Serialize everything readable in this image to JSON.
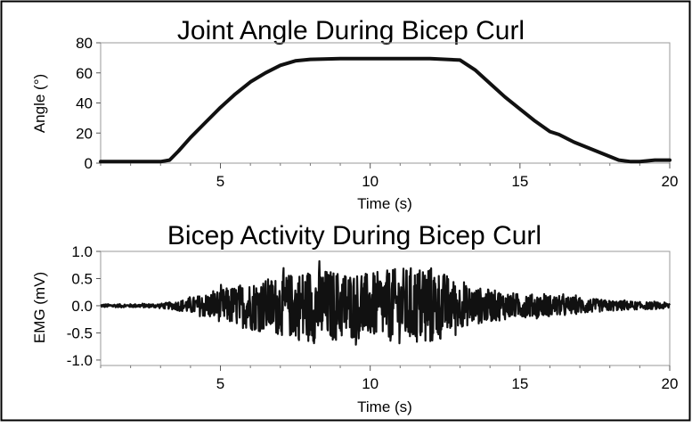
{
  "chart_data": [
    {
      "type": "line",
      "title": "Joint Angle During Bicep Curl",
      "xlabel": "Time (s)",
      "ylabel": "Angle (°)",
      "xlim": [
        1,
        20
      ],
      "ylim": [
        0,
        80
      ],
      "xticks": [
        5,
        10,
        15,
        20
      ],
      "yticks": [
        0,
        20,
        40,
        60,
        80
      ],
      "series": [
        {
          "color": "#111111",
          "x": [
            1,
            2,
            3,
            3.3,
            3.6,
            4,
            4.5,
            5,
            5.5,
            6,
            6.5,
            7,
            7.5,
            8,
            9,
            10,
            11,
            12,
            13,
            13.5,
            14,
            14.5,
            15,
            15.5,
            16,
            16.3,
            16.8,
            17.3,
            17.8,
            18.3,
            18.7,
            19,
            19.5,
            20
          ],
          "y": [
            1,
            1,
            1,
            2,
            8,
            17,
            27,
            37,
            46,
            54,
            60,
            65,
            68,
            69,
            69.5,
            69.5,
            69.5,
            69.5,
            68.5,
            62,
            53,
            44,
            36,
            28,
            21,
            19,
            14,
            10,
            6,
            2,
            1,
            1,
            2,
            2
          ]
        }
      ]
    },
    {
      "type": "line",
      "title": "Bicep Activity During Bicep Curl",
      "xlabel": "Time (s)",
      "ylabel": "EMG (mV)",
      "xlim": [
        1,
        20
      ],
      "ylim": [
        -1.1,
        1.0
      ],
      "xticks": [
        5,
        10,
        15,
        20
      ],
      "yticks": [
        1.0,
        0.5,
        0.0,
        -0.5,
        -1.0
      ],
      "ytick_labels": [
        "1.0",
        "0.5",
        "0.0",
        "-0.5",
        "-1.0"
      ],
      "envelope": {
        "x": [
          1,
          2,
          3,
          3.5,
          4,
          5,
          6,
          7,
          8,
          9,
          10,
          11,
          12,
          12.5,
          13,
          14,
          15,
          16,
          17,
          18,
          19,
          20
        ],
        "amplitude": [
          0.03,
          0.03,
          0.04,
          0.08,
          0.15,
          0.3,
          0.45,
          0.55,
          0.7,
          0.65,
          0.6,
          0.7,
          0.75,
          0.6,
          0.4,
          0.3,
          0.22,
          0.2,
          0.15,
          0.1,
          0.07,
          0.06
        ]
      },
      "series": [
        {
          "color": "#111111"
        }
      ]
    }
  ]
}
